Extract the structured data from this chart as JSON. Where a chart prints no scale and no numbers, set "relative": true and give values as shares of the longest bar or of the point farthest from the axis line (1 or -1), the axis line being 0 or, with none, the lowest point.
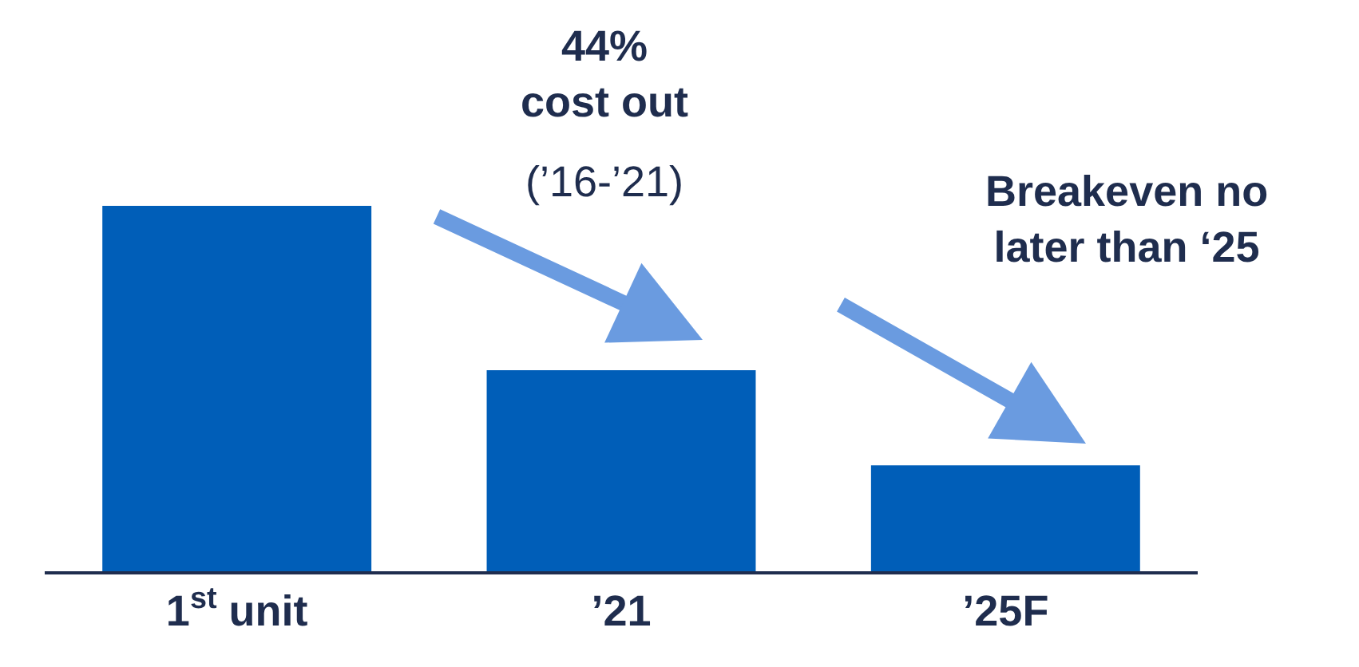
{
  "chart_data": {
    "type": "bar",
    "relative": true,
    "categories": [
      "1$^{st}$ unit",
      "’21",
      "’25F"
    ],
    "values": [
      1,
      0.55,
      0.29
    ],
    "color": "#005eb8",
    "annotations": [
      "44%\ncost out",
      "(’16-’21)",
      "Breakeven no\nlater than ‘25"
    ]
  }
}
